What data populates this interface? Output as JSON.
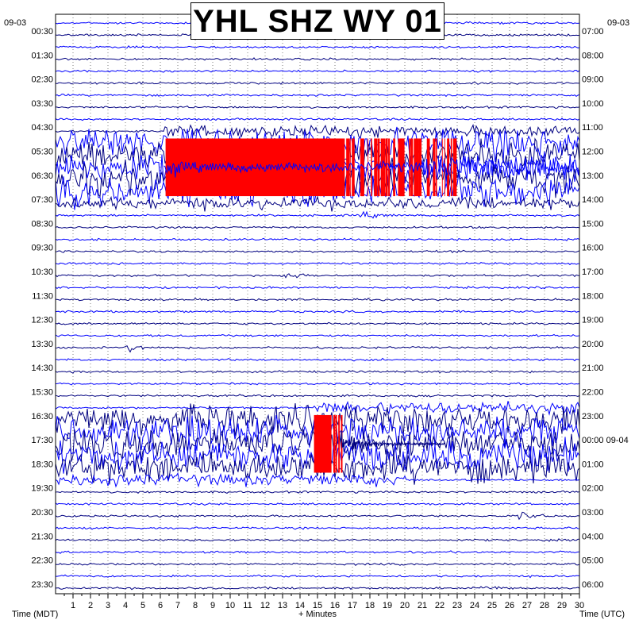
{
  "title": "YHL SHZ WY 01",
  "date_left": "09-03",
  "date_right": "09-03",
  "x_label_left": "Time (MDT)",
  "x_label_center": "+ Minutes",
  "x_label_right": "Time (UTC)",
  "colors": {
    "trace_blue": "#0000ff",
    "trace_navy": "#000080",
    "clip_red": "#ff0000",
    "grid": "#000000"
  },
  "chart_data": {
    "type": "line",
    "title": "YHL SHZ WY 01",
    "xlabel": "+ Minutes",
    "ylabel": "Time (MDT)",
    "xlim": [
      0,
      30
    ],
    "x_ticks": [
      "1",
      "2",
      "3",
      "4",
      "5",
      "6",
      "7",
      "8",
      "9",
      "10",
      "11",
      "12",
      "13",
      "14",
      "15",
      "16",
      "17",
      "18",
      "19",
      "20",
      "21",
      "22",
      "23",
      "24",
      "25",
      "26",
      "27",
      "28",
      "29",
      "30"
    ],
    "left_time_labels": [
      "00:30",
      "01:30",
      "02:30",
      "03:30",
      "04:30",
      "05:30",
      "06:30",
      "07:30",
      "08:30",
      "09:30",
      "10:30",
      "11:30",
      "12:30",
      "13:30",
      "14:30",
      "15:30",
      "16:30",
      "17:30",
      "18:30",
      "19:30",
      "20:30",
      "21:30",
      "22:30",
      "23:30"
    ],
    "right_time_labels": [
      "07:00",
      "08:00",
      "09:00",
      "10:00",
      "11:00",
      "12:00",
      "13:00",
      "14:00",
      "15:00",
      "16:00",
      "17:00",
      "18:00",
      "19:00",
      "20:00",
      "21:00",
      "22:00",
      "23:00",
      "00:00 09-04",
      "01:00",
      "02:00",
      "03:00",
      "04:00",
      "05:00",
      "06:00"
    ],
    "traces_per_hour": 2,
    "trace_count": 48,
    "grid": true,
    "events": [
      {
        "start_trace": 9,
        "start_minute": 6.2,
        "end_trace": 15,
        "end_minute": 30,
        "type": "large"
      },
      {
        "start_trace": 16,
        "start_minute": 17.3,
        "end_trace": 16,
        "end_minute": 20,
        "type": "small"
      },
      {
        "start_trace": 21,
        "start_minute": 12.8,
        "end_trace": 21,
        "end_minute": 15,
        "type": "small"
      },
      {
        "start_trace": 27,
        "start_minute": 4.0,
        "end_trace": 27,
        "end_minute": 7,
        "type": "small"
      },
      {
        "start_trace": 32,
        "start_minute": 14.8,
        "end_trace": 38,
        "end_minute": 20,
        "type": "large"
      },
      {
        "start_trace": 41,
        "start_minute": 26.5,
        "end_trace": 41,
        "end_minute": 28,
        "type": "small"
      },
      {
        "start_trace": 47,
        "start_minute": 24.3,
        "end_trace": 47,
        "end_minute": 26,
        "type": "small"
      }
    ]
  }
}
